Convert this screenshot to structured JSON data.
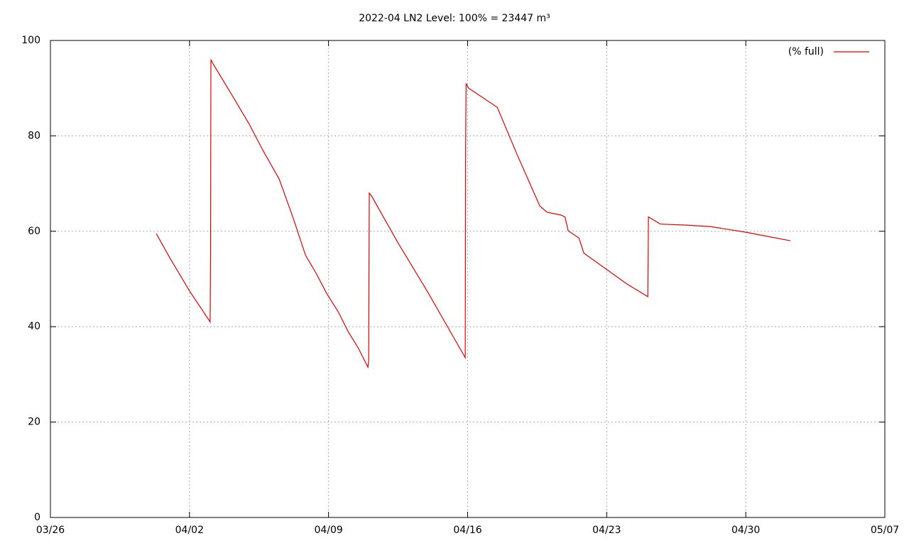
{
  "chart_data": {
    "type": "line",
    "title": "2022-04 LN2 Level: 100% = 23447 m³",
    "series": [
      {
        "name": "(% full)",
        "color": "#e00000",
        "x": [
          5.33,
          6.0,
          7.0,
          8.04,
          8.06,
          8.08,
          8.2,
          9.0,
          10.0,
          10.69,
          11.51,
          12.2,
          12.84,
          13.4,
          13.9,
          14.5,
          14.98,
          15.5,
          15.98,
          16.02,
          16.05,
          16.15,
          17.48,
          19.0,
          20.88,
          20.9,
          20.92,
          21.05,
          22.49,
          23.5,
          24.63,
          25.0,
          25.7,
          25.9,
          26.06,
          26.6,
          26.85,
          28.0,
          29.0,
          30.07,
          30.1,
          30.7,
          32.0,
          33.2,
          35.0,
          36.0,
          37.25
        ],
        "values": [
          59.5,
          54.5,
          47.5,
          41,
          54.5,
          96,
          95,
          89.5,
          82.5,
          77,
          71,
          63,
          55,
          51,
          47,
          43,
          39,
          35.5,
          31.5,
          33,
          68,
          67.5,
          57.7,
          47.2,
          33.5,
          77.5,
          91,
          90,
          86,
          76,
          65.3,
          64,
          63.4,
          63,
          60.1,
          58.6,
          55.4,
          52,
          49,
          46.3,
          63,
          61.5,
          61.3,
          61,
          59.8,
          59,
          58
        ]
      }
    ],
    "xlim": [
      0,
      42
    ],
    "xticks": [
      {
        "value": 0,
        "label": "03/26"
      },
      {
        "value": 7,
        "label": "04/02"
      },
      {
        "value": 14,
        "label": "04/09"
      },
      {
        "value": 21,
        "label": "04/16"
      },
      {
        "value": 28,
        "label": "04/23"
      },
      {
        "value": 35,
        "label": "04/30"
      },
      {
        "value": 42,
        "label": "05/07"
      }
    ],
    "ylim": [
      0,
      100
    ],
    "yticks": [
      0,
      20,
      40,
      60,
      80,
      100
    ],
    "grid": true,
    "legend": "top-right"
  }
}
